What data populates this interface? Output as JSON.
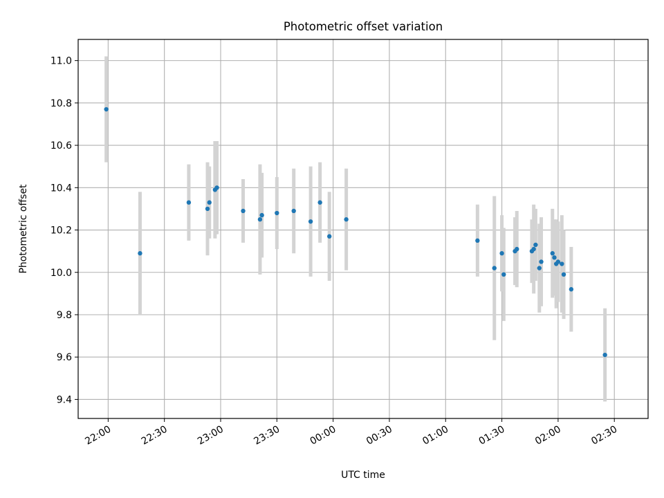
{
  "chart_data": {
    "type": "scatter",
    "title": "Photometric offset variation",
    "xlabel": "UTC time",
    "ylabel": "Photometric offset",
    "xlim": [
      "21:44",
      "02:48"
    ],
    "ylim": [
      9.31,
      11.1
    ],
    "x_ticks": [
      "22:00",
      "22:30",
      "23:00",
      "23:30",
      "00:00",
      "00:30",
      "01:00",
      "01:30",
      "02:00",
      "02:30"
    ],
    "y_ticks": [
      11.0,
      10.8,
      10.6,
      10.4,
      10.2,
      10.0,
      9.8,
      9.6,
      9.4
    ],
    "grid": true,
    "legend": "none",
    "colors": {
      "marker": "#1f77b4",
      "errorbar": "#d3d3d3",
      "grid": "#b0b0b0"
    },
    "series": [
      {
        "points": [
          {
            "x": "21:59",
            "y": 10.77,
            "err": 0.25
          },
          {
            "x": "22:17",
            "y": 10.09,
            "err": 0.29
          },
          {
            "x": "22:43",
            "y": 10.33,
            "err": 0.18
          },
          {
            "x": "22:53",
            "y": 10.3,
            "err": 0.22
          },
          {
            "x": "22:54",
            "y": 10.33,
            "err": 0.17
          },
          {
            "x": "22:57",
            "y": 10.39,
            "err": 0.23
          },
          {
            "x": "22:58",
            "y": 10.4,
            "err": 0.22
          },
          {
            "x": "23:12",
            "y": 10.29,
            "err": 0.15
          },
          {
            "x": "23:21",
            "y": 10.25,
            "err": 0.26
          },
          {
            "x": "23:22",
            "y": 10.27,
            "err": 0.2
          },
          {
            "x": "23:30",
            "y": 10.28,
            "err": 0.17
          },
          {
            "x": "23:39",
            "y": 10.29,
            "err": 0.2
          },
          {
            "x": "23:48",
            "y": 10.24,
            "err": 0.26
          },
          {
            "x": "23:53",
            "y": 10.33,
            "err": 0.19
          },
          {
            "x": "23:58",
            "y": 10.17,
            "err": 0.21
          },
          {
            "x": "00:07",
            "y": 10.25,
            "err": 0.24
          },
          {
            "x": "01:17",
            "y": 10.15,
            "err": 0.17
          },
          {
            "x": "01:26",
            "y": 10.02,
            "err": 0.34
          },
          {
            "x": "01:30",
            "y": 10.09,
            "err": 0.18
          },
          {
            "x": "01:31",
            "y": 9.99,
            "err": 0.22
          },
          {
            "x": "01:37",
            "y": 10.1,
            "err": 0.16
          },
          {
            "x": "01:38",
            "y": 10.11,
            "err": 0.18
          },
          {
            "x": "01:46",
            "y": 10.1,
            "err": 0.15
          },
          {
            "x": "01:47",
            "y": 10.11,
            "err": 0.21
          },
          {
            "x": "01:48",
            "y": 10.13,
            "err": 0.17
          },
          {
            "x": "01:50",
            "y": 10.02,
            "err": 0.21
          },
          {
            "x": "01:51",
            "y": 10.05,
            "err": 0.21
          },
          {
            "x": "01:57",
            "y": 10.09,
            "err": 0.21
          },
          {
            "x": "01:58",
            "y": 10.07,
            "err": 0.18
          },
          {
            "x": "01:59",
            "y": 10.04,
            "err": 0.21
          },
          {
            "x": "02:00",
            "y": 10.05,
            "err": 0.19
          },
          {
            "x": "02:02",
            "y": 10.04,
            "err": 0.23
          },
          {
            "x": "02:03",
            "y": 9.99,
            "err": 0.21
          },
          {
            "x": "02:07",
            "y": 9.92,
            "err": 0.2
          },
          {
            "x": "02:25",
            "y": 9.61,
            "err": 0.22
          }
        ]
      }
    ]
  }
}
